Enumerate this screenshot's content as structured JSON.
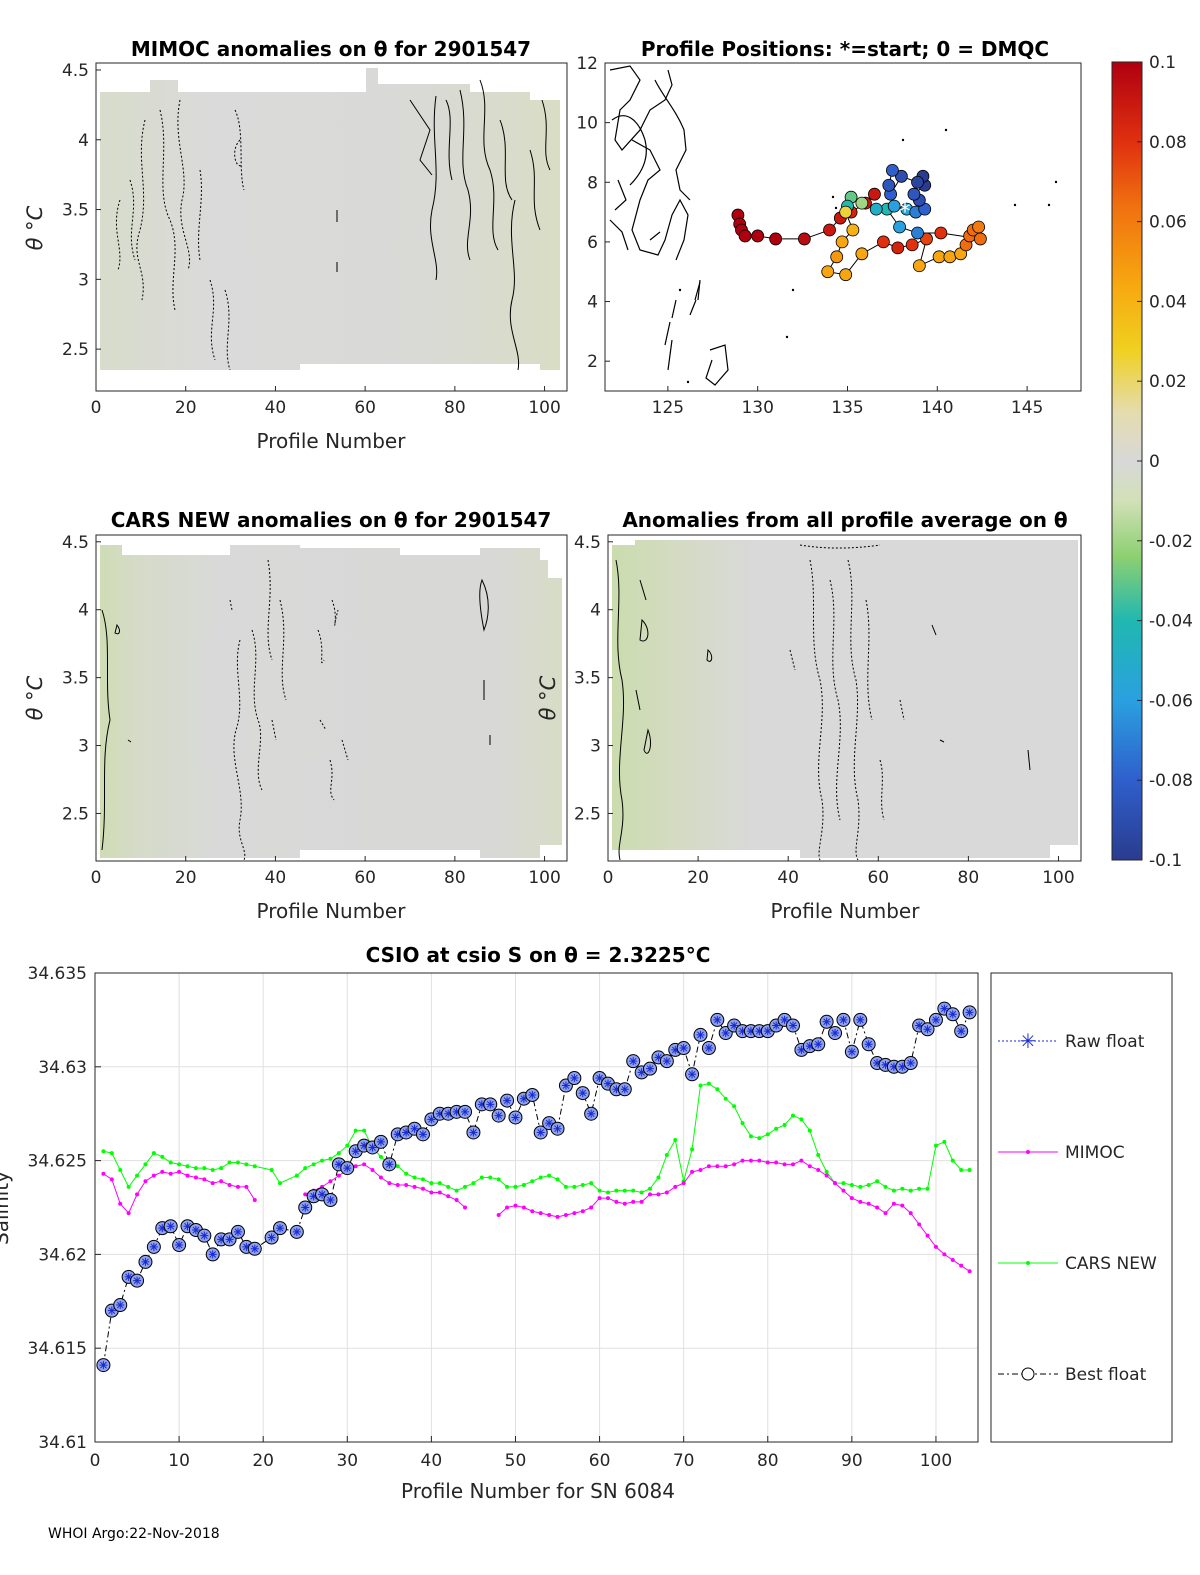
{
  "panels": {
    "mimoc": {
      "title": "MIMOC anomalies on θ  for 2901547",
      "xlabel": "Profile Number",
      "ylabel": "θ °C",
      "xticks": [
        "0",
        "20",
        "40",
        "60",
        "80",
        "100"
      ],
      "yticks": [
        "4.5",
        "4",
        "3.5",
        "3",
        "2.5"
      ],
      "xlim": [
        0,
        105
      ],
      "ylim": [
        2.2,
        4.55
      ]
    },
    "positions": {
      "title": "Profile Positions: *=start; 0 = DMQC",
      "xticks": [
        "125",
        "130",
        "135",
        "140",
        "145"
      ],
      "yticks": [
        "12",
        "10",
        "8",
        "6",
        "4",
        "2"
      ],
      "xlim": [
        121.5,
        148
      ],
      "ylim": [
        1,
        12
      ]
    },
    "cars": {
      "title": "CARS NEW anomalies on θ for 2901547",
      "xlabel": "Profile Number",
      "ylabel": "θ °C",
      "xticks": [
        "0",
        "20",
        "40",
        "60",
        "80",
        "100"
      ],
      "yticks": [
        "4.5",
        "4",
        "3.5",
        "3",
        "2.5"
      ],
      "xlim": [
        0,
        105
      ],
      "ylim": [
        2.15,
        4.55
      ]
    },
    "profavg": {
      "title": "Anomalies from all profile average on θ",
      "xlabel": "Profile Number",
      "ylabel": "θ °C",
      "xticks": [
        "0",
        "20",
        "40",
        "60",
        "80",
        "100"
      ],
      "yticks": [
        "4.5",
        "4",
        "3.5",
        "3",
        "2.5"
      ],
      "xlim": [
        0,
        105
      ],
      "ylim": [
        2.15,
        4.55
      ]
    }
  },
  "colorbar": {
    "ticks": [
      "0.1",
      "0.08",
      "0.06",
      "0.04",
      "0.02",
      "0",
      "-0.02",
      "-0.04",
      "-0.06",
      "-0.08",
      "-0.1"
    ],
    "range": [
      -0.1,
      0.1
    ]
  },
  "footer": "WHOI Argo:22-Nov-2018",
  "chart_data": [
    {
      "type": "scatter",
      "title": "Profile Positions: *=start; 0 = DMQC",
      "xlim": [
        121.5,
        148
      ],
      "ylim": [
        1,
        12
      ],
      "points": [
        {
          "x": 128.9,
          "y": 6.9,
          "v": 0.1
        },
        {
          "x": 129.0,
          "y": 6.6,
          "v": 0.1
        },
        {
          "x": 129.1,
          "y": 6.4,
          "v": 0.1
        },
        {
          "x": 129.3,
          "y": 6.2,
          "v": 0.1
        },
        {
          "x": 130.0,
          "y": 6.2,
          "v": 0.1
        },
        {
          "x": 131.0,
          "y": 6.1,
          "v": 0.1
        },
        {
          "x": 132.6,
          "y": 6.1,
          "v": 0.095
        },
        {
          "x": 134.0,
          "y": 6.4,
          "v": 0.09
        },
        {
          "x": 134.6,
          "y": 6.8,
          "v": 0.09
        },
        {
          "x": 135.2,
          "y": 7.0,
          "v": 0.085
        },
        {
          "x": 136.0,
          "y": 7.3,
          "v": 0.09
        },
        {
          "x": 136.5,
          "y": 7.6,
          "v": 0.09
        },
        {
          "x": 135.8,
          "y": 7.3,
          "v": -0.02
        },
        {
          "x": 135.2,
          "y": 7.5,
          "v": -0.03
        },
        {
          "x": 135.0,
          "y": 7.2,
          "v": -0.04
        },
        {
          "x": 134.9,
          "y": 7.0,
          "v": 0.025
        },
        {
          "x": 135.3,
          "y": 6.4,
          "v": 0.04
        },
        {
          "x": 134.7,
          "y": 6.0,
          "v": 0.045
        },
        {
          "x": 134.4,
          "y": 5.5,
          "v": 0.05
        },
        {
          "x": 133.9,
          "y": 5.0,
          "v": 0.045
        },
        {
          "x": 134.9,
          "y": 4.9,
          "v": 0.045
        },
        {
          "x": 135.8,
          "y": 5.6,
          "v": 0.045
        },
        {
          "x": 137.0,
          "y": 6.0,
          "v": 0.08
        },
        {
          "x": 137.8,
          "y": 5.8,
          "v": 0.085
        },
        {
          "x": 138.6,
          "y": 5.9,
          "v": 0.08
        },
        {
          "x": 139.4,
          "y": 6.1,
          "v": 0.075
        },
        {
          "x": 139.0,
          "y": 5.2,
          "v": 0.045
        },
        {
          "x": 140.1,
          "y": 5.5,
          "v": 0.045
        },
        {
          "x": 140.7,
          "y": 5.5,
          "v": 0.045
        },
        {
          "x": 141.3,
          "y": 5.6,
          "v": 0.045
        },
        {
          "x": 141.6,
          "y": 5.9,
          "v": 0.065
        },
        {
          "x": 141.8,
          "y": 6.2,
          "v": 0.065
        },
        {
          "x": 142.0,
          "y": 6.4,
          "v": 0.065
        },
        {
          "x": 142.3,
          "y": 6.5,
          "v": 0.06
        },
        {
          "x": 142.4,
          "y": 6.1,
          "v": 0.065
        },
        {
          "x": 140.2,
          "y": 6.3,
          "v": 0.08
        },
        {
          "x": 138.9,
          "y": 6.3,
          "v": -0.07
        },
        {
          "x": 137.9,
          "y": 6.5,
          "v": -0.06
        },
        {
          "x": 137.2,
          "y": 7.1,
          "v": -0.04
        },
        {
          "x": 136.6,
          "y": 7.1,
          "v": -0.05
        },
        {
          "x": 137.6,
          "y": 7.2,
          "v": -0.06
        },
        {
          "x": 138.3,
          "y": 7.1,
          "v": -0.055
        },
        {
          "x": 138.8,
          "y": 7.0,
          "v": -0.07
        },
        {
          "x": 139.3,
          "y": 7.1,
          "v": -0.08
        },
        {
          "x": 139.0,
          "y": 7.4,
          "v": -0.09
        },
        {
          "x": 138.7,
          "y": 7.6,
          "v": -0.085
        },
        {
          "x": 139.3,
          "y": 7.9,
          "v": -0.1
        },
        {
          "x": 139.2,
          "y": 8.2,
          "v": -0.1
        },
        {
          "x": 138.9,
          "y": 8.0,
          "v": -0.095
        },
        {
          "x": 138.0,
          "y": 8.2,
          "v": -0.09
        },
        {
          "x": 137.4,
          "y": 7.6,
          "v": -0.08
        },
        {
          "x": 137.3,
          "y": 7.9,
          "v": -0.085
        },
        {
          "x": 137.5,
          "y": 8.4,
          "v": -0.08
        }
      ]
    },
    {
      "type": "line",
      "title": "CSIO at csio S on θ = 2.3225°C",
      "xlabel": "Profile Number for SN 6084",
      "ylabel": "Salinity",
      "xlim": [
        0,
        105
      ],
      "ylim": [
        34.61,
        34.635
      ],
      "xticks": [
        0,
        10,
        20,
        30,
        40,
        50,
        60,
        70,
        80,
        90,
        100
      ],
      "yticks": [
        34.61,
        34.615,
        34.62,
        34.625,
        34.63,
        34.635
      ],
      "ytick_labels": [
        "34.61",
        "34.615",
        "34.62",
        "34.625",
        "34.63",
        "34.635"
      ],
      "legend": [
        "Raw float",
        "MIMOC",
        "CARS NEW",
        "Best float"
      ],
      "series": [
        {
          "name": "Best float",
          "color": "#000000",
          "x": [
            1,
            2,
            3,
            4,
            5,
            6,
            7,
            8,
            9,
            10,
            11,
            12,
            13,
            14,
            15,
            16,
            17,
            18,
            19,
            21,
            22,
            24,
            25,
            26,
            27,
            28,
            29,
            30,
            31,
            32,
            33,
            34,
            35,
            36,
            37,
            38,
            39,
            40,
            41,
            42,
            43,
            44,
            45,
            46,
            47,
            48,
            49,
            50,
            51,
            52,
            53,
            54,
            55,
            56,
            57,
            58,
            59,
            60,
            61,
            62,
            63,
            64,
            65,
            66,
            67,
            68,
            69,
            70,
            71,
            72,
            73,
            74,
            75,
            76,
            77,
            78,
            79,
            80,
            81,
            82,
            83,
            84,
            85,
            86,
            87,
            88,
            89,
            90,
            91,
            92,
            93,
            94,
            95,
            96,
            97,
            98,
            99,
            100,
            101,
            102,
            103,
            104
          ],
          "y": [
            34.6141,
            34.617,
            34.6173,
            34.6188,
            34.6186,
            34.6196,
            34.6204,
            34.6214,
            34.6215,
            34.6205,
            34.6215,
            34.6213,
            34.621,
            34.62,
            34.6208,
            34.6208,
            34.6212,
            34.6204,
            34.6203,
            34.6209,
            34.6214,
            34.6212,
            34.6225,
            34.6231,
            34.6232,
            34.6229,
            34.6248,
            34.6246,
            34.6255,
            34.6258,
            34.6257,
            34.626,
            34.6248,
            34.6264,
            34.6265,
            34.6267,
            34.6264,
            34.6272,
            34.6275,
            34.6275,
            34.6276,
            34.6276,
            34.6265,
            34.628,
            34.628,
            34.6274,
            34.6282,
            34.6273,
            34.6283,
            34.6285,
            34.6265,
            34.627,
            34.6267,
            34.629,
            34.6294,
            34.6286,
            34.6275,
            34.6294,
            34.6291,
            34.6288,
            34.6288,
            34.6303,
            34.6297,
            34.6299,
            34.6305,
            34.6303,
            34.6309,
            34.631,
            34.6296,
            34.6317,
            34.631,
            34.6325,
            34.6318,
            34.6322,
            34.6319,
            34.6319,
            34.6319,
            34.6319,
            34.6322,
            34.6325,
            34.6322,
            34.6309,
            34.6311,
            34.6312,
            34.6324,
            34.6318,
            34.6325,
            34.6308,
            34.6325,
            34.6312,
            34.6302,
            34.6301,
            34.63,
            34.63,
            34.6302,
            34.6322,
            34.632,
            34.6325,
            34.6331,
            34.6328,
            34.6319,
            34.6329
          ]
        },
        {
          "name": "MIMOC",
          "color": "#ff00ff",
          "x": [
            1,
            2,
            3,
            4,
            5,
            6,
            7,
            8,
            9,
            10,
            11,
            12,
            13,
            14,
            15,
            16,
            17,
            18,
            19,
            null,
            25,
            26,
            27,
            28,
            29,
            30,
            31,
            32,
            33,
            34,
            35,
            36,
            37,
            38,
            39,
            40,
            41,
            42,
            43,
            44,
            null,
            48,
            49,
            50,
            51,
            52,
            53,
            54,
            55,
            56,
            57,
            58,
            59,
            60,
            61,
            62,
            63,
            64,
            65,
            66,
            67,
            68,
            69,
            70,
            71,
            72,
            73,
            74,
            75,
            76,
            77,
            78,
            79,
            80,
            81,
            82,
            83,
            84,
            85,
            86,
            87,
            88,
            89,
            90,
            91,
            92,
            93,
            94,
            95,
            96,
            97,
            98,
            99,
            100,
            101,
            102,
            103,
            104
          ],
          "y": [
            34.6243,
            34.624,
            34.6227,
            34.6222,
            34.6232,
            34.6239,
            34.6242,
            34.6244,
            34.6243,
            34.6244,
            34.6242,
            34.6241,
            34.624,
            34.6238,
            34.6239,
            34.6237,
            34.6236,
            34.6236,
            34.6229,
            null,
            34.6232,
            34.6234,
            34.6236,
            34.6239,
            34.6242,
            34.6245,
            34.6247,
            34.6248,
            34.6245,
            34.6241,
            34.6238,
            34.6237,
            34.6237,
            34.6236,
            34.6235,
            34.6233,
            34.6233,
            34.6231,
            34.6229,
            34.6225,
            null,
            34.6221,
            34.6225,
            34.6226,
            34.6225,
            34.6223,
            34.6222,
            34.6221,
            34.622,
            34.6221,
            34.6222,
            34.6223,
            34.6225,
            34.623,
            34.623,
            34.6228,
            34.6227,
            34.6228,
            34.6228,
            34.6232,
            34.6232,
            34.6233,
            34.6236,
            34.6238,
            34.6244,
            34.6245,
            34.6247,
            34.6247,
            34.6247,
            34.6248,
            34.625,
            34.625,
            34.625,
            34.6249,
            34.6249,
            34.6248,
            34.6248,
            34.625,
            34.6247,
            34.6245,
            34.6242,
            34.6238,
            34.6234,
            34.623,
            34.6228,
            34.6227,
            34.6225,
            34.6222,
            34.6227,
            34.6226,
            34.6222,
            34.6216,
            34.621,
            34.6204,
            34.62,
            34.6197,
            34.6194,
            34.6191
          ]
        },
        {
          "name": "CARS NEW",
          "color": "#00ff00",
          "x": [
            1,
            2,
            3,
            4,
            5,
            6,
            7,
            8,
            9,
            10,
            11,
            12,
            13,
            14,
            15,
            16,
            17,
            18,
            19,
            21,
            22,
            24,
            25,
            26,
            27,
            28,
            29,
            30,
            31,
            32,
            33,
            34,
            35,
            36,
            37,
            38,
            39,
            40,
            41,
            42,
            43,
            44,
            45,
            46,
            47,
            48,
            49,
            50,
            51,
            52,
            53,
            54,
            55,
            56,
            57,
            58,
            59,
            60,
            61,
            62,
            63,
            64,
            65,
            66,
            67,
            68,
            69,
            70,
            71,
            72,
            73,
            74,
            75,
            76,
            77,
            78,
            79,
            80,
            81,
            82,
            83,
            84,
            85,
            86,
            87,
            88,
            89,
            90,
            91,
            92,
            93,
            94,
            95,
            96,
            97,
            98,
            99,
            100,
            101,
            102,
            103,
            104
          ],
          "y": [
            34.6255,
            34.6254,
            34.6245,
            34.6236,
            34.6242,
            34.6248,
            34.6254,
            34.6252,
            34.6249,
            34.6248,
            34.6247,
            34.6246,
            34.6246,
            34.6245,
            34.6246,
            34.6249,
            34.6249,
            34.6248,
            34.6247,
            34.6245,
            34.6238,
            34.6242,
            34.6246,
            34.6248,
            34.625,
            34.6251,
            34.6254,
            34.6258,
            34.6266,
            34.6266,
            34.6257,
            34.6252,
            34.6248,
            34.6247,
            34.6243,
            34.6241,
            34.624,
            34.6238,
            34.6238,
            34.6236,
            34.6234,
            34.6236,
            34.6238,
            34.6241,
            34.6241,
            34.624,
            34.6236,
            34.6236,
            34.6237,
            34.6239,
            34.6241,
            34.6242,
            34.624,
            34.6236,
            34.6236,
            34.6237,
            34.6238,
            34.6234,
            34.6233,
            34.6234,
            34.6234,
            34.6234,
            34.6233,
            34.6235,
            34.6241,
            34.6253,
            34.6261,
            34.6239,
            34.6256,
            34.629,
            34.6291,
            34.6288,
            34.6283,
            34.6279,
            34.627,
            34.6263,
            34.6262,
            34.6264,
            34.6267,
            34.6269,
            34.6274,
            34.6272,
            34.6266,
            34.6253,
            34.6244,
            34.6238,
            34.6238,
            34.6237,
            34.6236,
            34.6237,
            34.6239,
            34.6236,
            34.6234,
            34.6235,
            34.6234,
            34.6235,
            34.6235,
            34.6258,
            34.626,
            34.625,
            34.6245,
            34.6245
          ]
        }
      ]
    }
  ]
}
